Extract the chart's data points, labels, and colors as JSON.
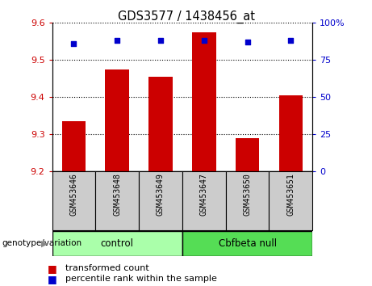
{
  "title": "GDS3577 / 1438456_at",
  "categories": [
    "GSM453646",
    "GSM453648",
    "GSM453649",
    "GSM453647",
    "GSM453650",
    "GSM453651"
  ],
  "bar_values": [
    9.335,
    9.475,
    9.455,
    9.575,
    9.29,
    9.405
  ],
  "percentile_values": [
    86,
    88,
    88,
    88,
    87,
    88
  ],
  "ylim_left": [
    9.2,
    9.6
  ],
  "ylim_right": [
    0,
    100
  ],
  "yticks_left": [
    9.2,
    9.3,
    9.4,
    9.5,
    9.6
  ],
  "yticks_right": [
    0,
    25,
    50,
    75,
    100
  ],
  "bar_color": "#cc0000",
  "dot_color": "#0000cc",
  "bar_base": 9.2,
  "grid_values": [
    9.3,
    9.4,
    9.5
  ],
  "group1_label": "control",
  "group2_label": "Cbfbeta null",
  "group1_indices": [
    0,
    1,
    2
  ],
  "group2_indices": [
    3,
    4,
    5
  ],
  "group1_color": "#aaffaa",
  "group2_color": "#55dd55",
  "genotype_label": "genotype/variation",
  "legend_bar_label": "transformed count",
  "legend_dot_label": "percentile rank within the sample",
  "tick_label_color_left": "#cc0000",
  "tick_label_color_right": "#0000cc",
  "xlabel_area_color": "#cccccc",
  "bar_width": 0.55,
  "fig_width": 4.61,
  "fig_height": 3.54,
  "dpi": 100
}
